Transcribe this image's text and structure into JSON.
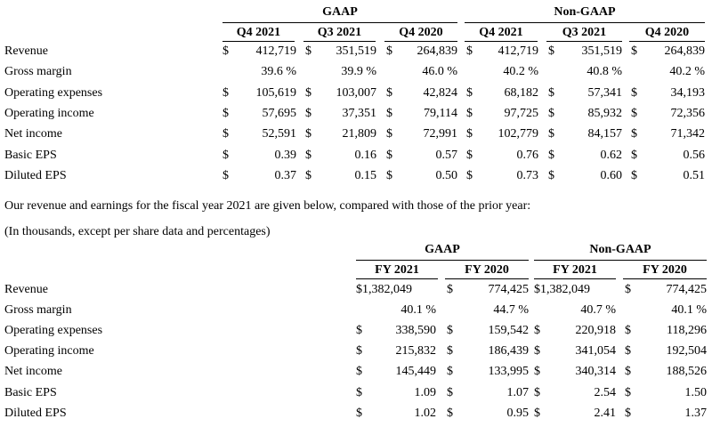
{
  "table1": {
    "groups": [
      "GAAP",
      "Non-GAAP"
    ],
    "columns": [
      "Q4 2021",
      "Q3 2021",
      "Q4 2020",
      "Q4 2021",
      "Q3 2021",
      "Q4 2020"
    ],
    "rows": [
      {
        "label": "Revenue",
        "cells": [
          [
            "$",
            "412,719"
          ],
          [
            "$",
            "351,519"
          ],
          [
            "$",
            "264,839"
          ],
          [
            "$",
            "412,719"
          ],
          [
            "$",
            "351,519"
          ],
          [
            "$",
            "264,839"
          ]
        ]
      },
      {
        "label": "Gross margin",
        "cells": [
          [
            "",
            "39.6 %"
          ],
          [
            "",
            "39.9 %"
          ],
          [
            "",
            "46.0 %"
          ],
          [
            "",
            "40.2 %"
          ],
          [
            "",
            "40.8 %"
          ],
          [
            "",
            "40.2 %"
          ]
        ]
      },
      {
        "label": "Operating expenses",
        "cells": [
          [
            "$",
            "105,619"
          ],
          [
            "$",
            "103,007"
          ],
          [
            "$",
            "42,824"
          ],
          [
            "$",
            "68,182"
          ],
          [
            "$",
            "57,341"
          ],
          [
            "$",
            "34,193"
          ]
        ]
      },
      {
        "label": "Operating income",
        "cells": [
          [
            "$",
            "57,695"
          ],
          [
            "$",
            "37,351"
          ],
          [
            "$",
            "79,114"
          ],
          [
            "$",
            "97,725"
          ],
          [
            "$",
            "85,932"
          ],
          [
            "$",
            "72,356"
          ]
        ]
      },
      {
        "label": "Net income",
        "cells": [
          [
            "$",
            "52,591"
          ],
          [
            "$",
            "21,809"
          ],
          [
            "$",
            "72,991"
          ],
          [
            "$",
            "102,779"
          ],
          [
            "$",
            "84,157"
          ],
          [
            "$",
            "71,342"
          ]
        ]
      },
      {
        "label": "Basic EPS",
        "cells": [
          [
            "$",
            "0.39"
          ],
          [
            "$",
            "0.16"
          ],
          [
            "$",
            "0.57"
          ],
          [
            "$",
            "0.76"
          ],
          [
            "$",
            "0.62"
          ],
          [
            "$",
            "0.56"
          ]
        ]
      },
      {
        "label": "Diluted EPS",
        "cells": [
          [
            "$",
            "0.37"
          ],
          [
            "$",
            "0.15"
          ],
          [
            "$",
            "0.50"
          ],
          [
            "$",
            "0.73"
          ],
          [
            "$",
            "0.60"
          ],
          [
            "$",
            "0.51"
          ]
        ]
      }
    ]
  },
  "paragraph1": "Our revenue and earnings for the fiscal year 2021 are given below, compared with those of the prior year:",
  "paragraph2": "(In thousands, except per share data and percentages)",
  "table2": {
    "groups": [
      "GAAP",
      "Non-GAAP"
    ],
    "columns": [
      "FY 2021",
      "FY 2020",
      "FY 2021",
      "FY 2020"
    ],
    "rows": [
      {
        "label": "Revenue",
        "cells": [
          [
            "$1,382,049",
            ""
          ],
          [
            "$",
            "774,425"
          ],
          [
            "$1,382,049",
            ""
          ],
          [
            "$",
            "774,425"
          ]
        ]
      },
      {
        "label": "Gross margin",
        "cells": [
          [
            "",
            "40.1 %"
          ],
          [
            "",
            "44.7 %"
          ],
          [
            "",
            "40.7 %"
          ],
          [
            "",
            "40.1 %"
          ]
        ]
      },
      {
        "label": "Operating expenses",
        "cells": [
          [
            "$",
            "338,590"
          ],
          [
            "$",
            "159,542"
          ],
          [
            "$",
            "220,918"
          ],
          [
            "$",
            "118,296"
          ]
        ]
      },
      {
        "label": "Operating income",
        "cells": [
          [
            "$",
            "215,832"
          ],
          [
            "$",
            "186,439"
          ],
          [
            "$",
            "341,054"
          ],
          [
            "$",
            "192,504"
          ]
        ]
      },
      {
        "label": "Net income",
        "cells": [
          [
            "$",
            "145,449"
          ],
          [
            "$",
            "133,995"
          ],
          [
            "$",
            "340,314"
          ],
          [
            "$",
            "188,526"
          ]
        ]
      },
      {
        "label": "Basic EPS",
        "cells": [
          [
            "$",
            "1.09"
          ],
          [
            "$",
            "1.07"
          ],
          [
            "$",
            "2.54"
          ],
          [
            "$",
            "1.50"
          ]
        ]
      },
      {
        "label": "Diluted EPS",
        "cells": [
          [
            "$",
            "1.02"
          ],
          [
            "$",
            "0.95"
          ],
          [
            "$",
            "2.41"
          ],
          [
            "$",
            "1.37"
          ]
        ]
      }
    ]
  }
}
